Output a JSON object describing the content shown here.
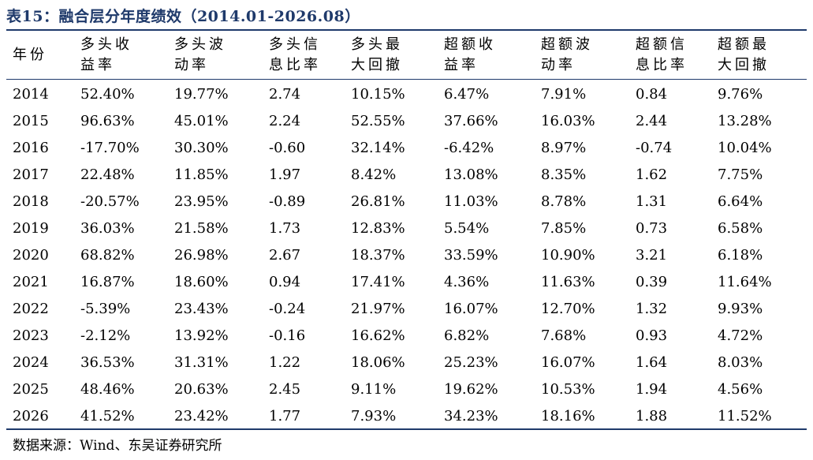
{
  "title": "表15：融合层分年度绩效（2014.01-2026.08）",
  "table": {
    "headers": [
      "年份",
      "多头收益率",
      "多头波动率",
      "多头信息比率",
      "多头最大回撤",
      "超额收益率",
      "超额波动率",
      "超额信息比率",
      "超额最大回撤"
    ],
    "rows": [
      [
        "2014",
        "52.40%",
        "19.77%",
        "2.74",
        "10.15%",
        "6.47%",
        "7.91%",
        "0.84",
        "9.76%"
      ],
      [
        "2015",
        "96.63%",
        "45.01%",
        "2.24",
        "52.55%",
        "37.66%",
        "16.03%",
        "2.44",
        "13.28%"
      ],
      [
        "2016",
        "-17.70%",
        "30.30%",
        "-0.60",
        "32.14%",
        "-6.42%",
        "8.97%",
        "-0.74",
        "10.04%"
      ],
      [
        "2017",
        "22.48%",
        "11.85%",
        "1.97",
        "8.42%",
        "13.08%",
        "8.35%",
        "1.62",
        "7.75%"
      ],
      [
        "2018",
        "-20.57%",
        "23.95%",
        "-0.89",
        "26.81%",
        "11.03%",
        "8.78%",
        "1.31",
        "6.64%"
      ],
      [
        "2019",
        "36.03%",
        "21.58%",
        "1.73",
        "12.83%",
        "5.54%",
        "7.85%",
        "0.73",
        "6.58%"
      ],
      [
        "2020",
        "68.82%",
        "26.98%",
        "2.67",
        "18.37%",
        "33.59%",
        "10.90%",
        "3.21",
        "6.18%"
      ],
      [
        "2021",
        "16.87%",
        "18.60%",
        "0.94",
        "17.41%",
        "4.36%",
        "11.63%",
        "0.39",
        "11.64%"
      ],
      [
        "2022",
        "-5.39%",
        "23.43%",
        "-0.24",
        "21.97%",
        "16.07%",
        "12.70%",
        "1.32",
        "9.93%"
      ],
      [
        "2023",
        "-2.12%",
        "13.92%",
        "-0.16",
        "16.62%",
        "6.82%",
        "7.68%",
        "0.93",
        "4.72%"
      ],
      [
        "2024",
        "36.53%",
        "31.31%",
        "1.22",
        "18.06%",
        "25.23%",
        "16.07%",
        "1.64",
        "8.03%"
      ],
      [
        "2025",
        "48.46%",
        "20.63%",
        "2.45",
        "9.11%",
        "19.62%",
        "10.53%",
        "1.94",
        "4.56%"
      ],
      [
        "2026",
        "41.52%",
        "23.42%",
        "1.77",
        "7.93%",
        "34.23%",
        "18.16%",
        "1.88",
        "11.52%"
      ]
    ]
  },
  "source": "数据来源：Wind、东吴证券研究所",
  "colors": {
    "accent": "#1f3a6b",
    "text": "#000000",
    "background": "#ffffff"
  }
}
